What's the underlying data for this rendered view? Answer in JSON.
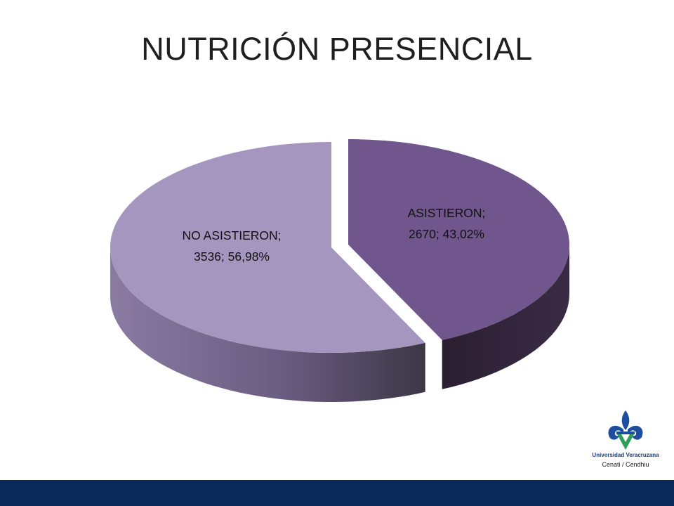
{
  "title": "NUTRICIÓN PRESENCIAL",
  "colors": {
    "no_asistieron_top": "#a596bf",
    "asistieron_top": "#70568c",
    "asistieron_side": "#2f2238",
    "bottom_bar": "#0b2a5c"
  },
  "chart_data": {
    "type": "pie",
    "three_d": true,
    "title": "NUTRICIÓN PRESENCIAL",
    "slices": [
      {
        "label": "NO ASISTIERON",
        "value": 3536,
        "percent": "56,98%",
        "label_line1": "NO ASISTIERON;",
        "label_line2": "3536; 56,98%"
      },
      {
        "label": "ASISTIERON",
        "value": 2670,
        "percent": "43,02%",
        "label_line1": "ASISTIERON;",
        "label_line2": "2670; 43,02%"
      }
    ]
  },
  "logo": {
    "name": "Universidad Veracruzana",
    "sub": "Cenati / Cendhiu",
    "icon": "uv-fleur-de-lis-logo"
  }
}
